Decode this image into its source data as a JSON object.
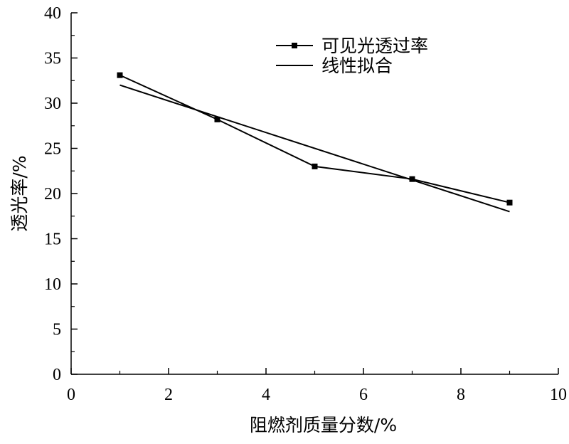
{
  "chart_data": {
    "type": "line",
    "xlabel": "阻燃剂质量分数/%",
    "ylabel": "透光率/%",
    "xlim": [
      0,
      10
    ],
    "ylim": [
      0,
      40
    ],
    "xticks": [
      "0",
      "2",
      "4",
      "6",
      "8",
      "10"
    ],
    "yticks": [
      "0",
      "5",
      "10",
      "15",
      "20",
      "25",
      "30",
      "35",
      "40"
    ],
    "grid": false,
    "legend_position": "top-right",
    "series": [
      {
        "name": "可见光透过率",
        "marker": "square",
        "x": [
          1,
          3,
          5,
          7,
          9
        ],
        "y": [
          33.1,
          28.2,
          23.0,
          21.6,
          19.0
        ]
      },
      {
        "name": "线性拟合",
        "marker": "none",
        "x": [
          1,
          9
        ],
        "y": [
          32.0,
          18.0
        ]
      }
    ]
  },
  "colors": {
    "line": "#000000",
    "background": "#ffffff"
  }
}
